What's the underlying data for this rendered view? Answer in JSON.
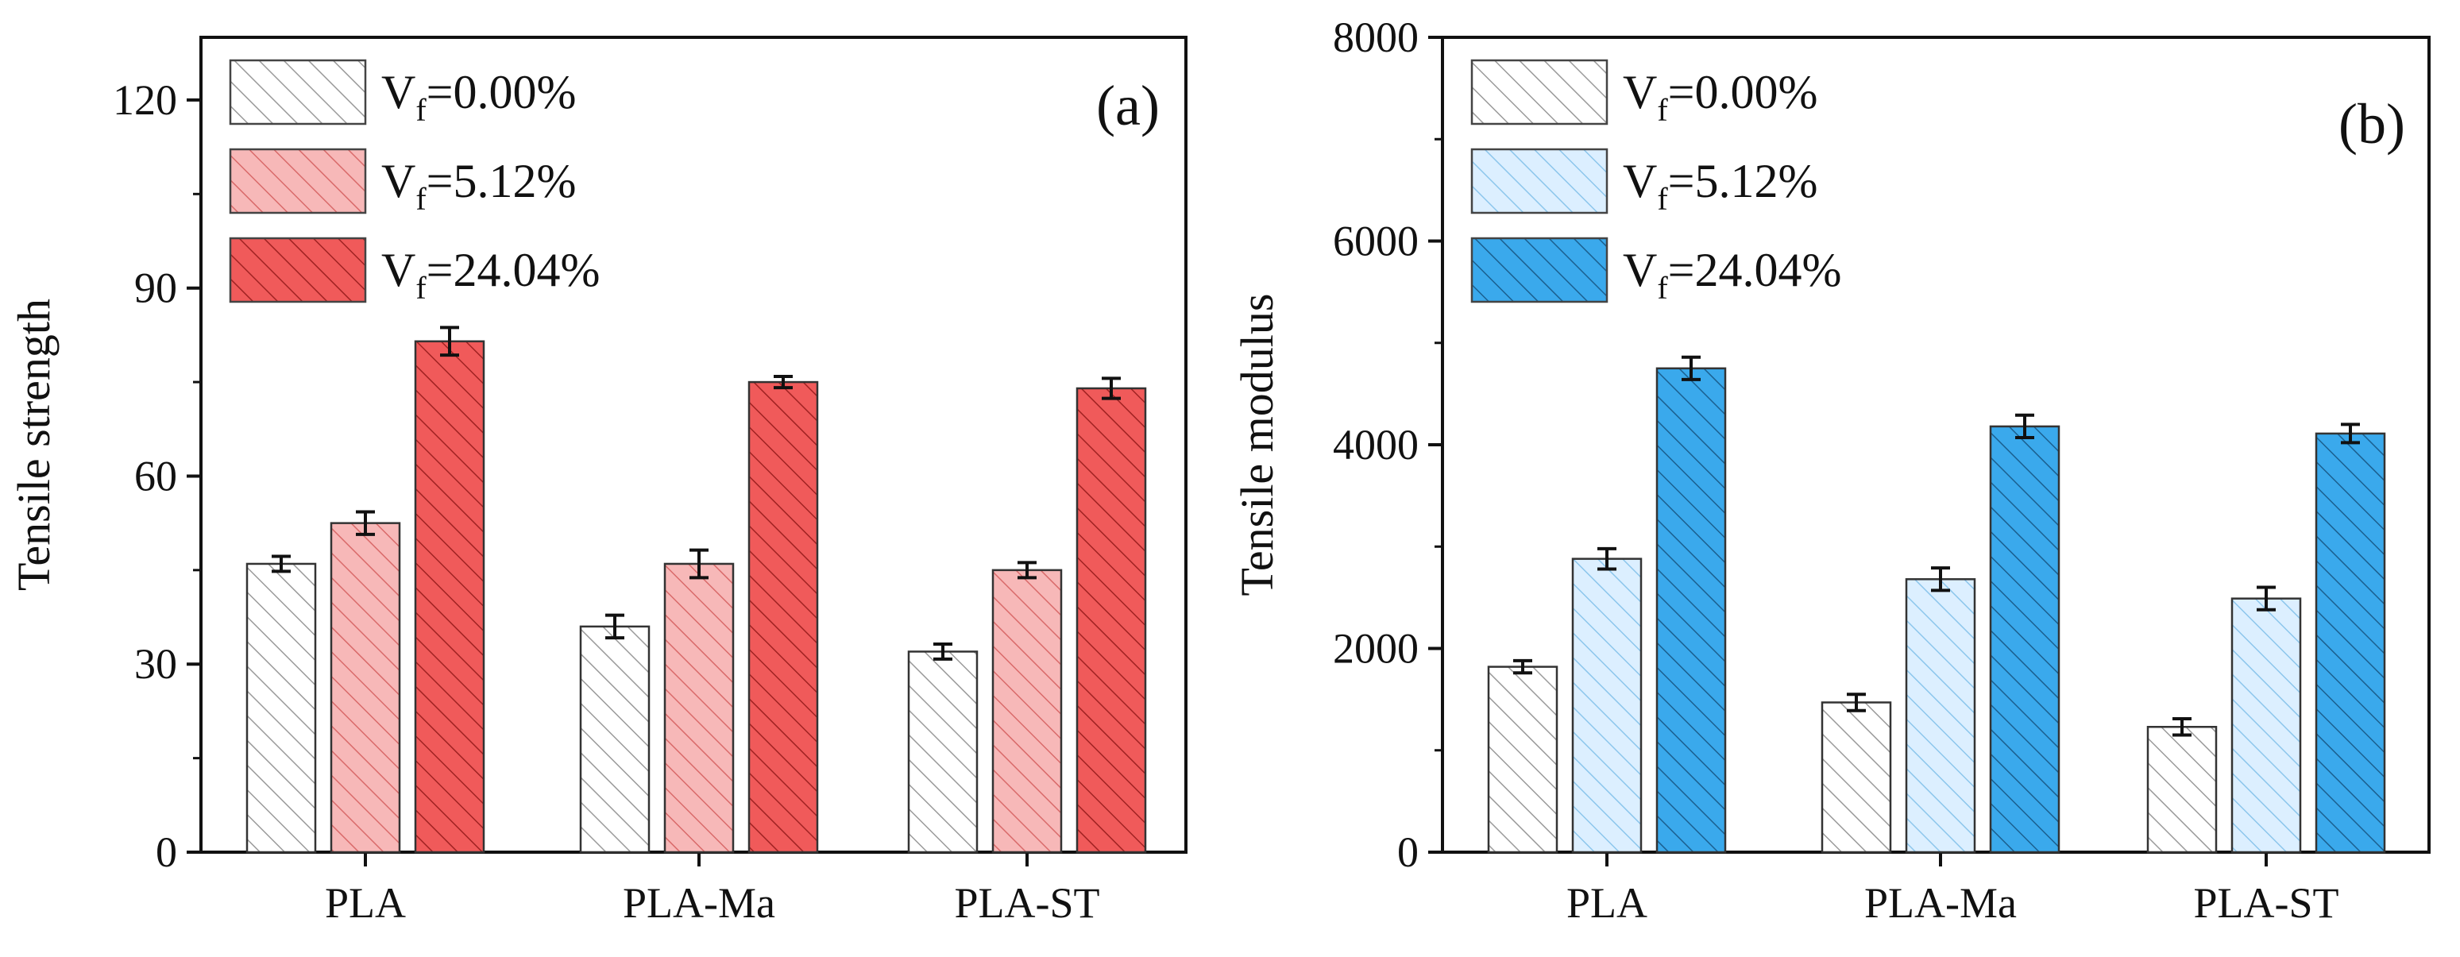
{
  "chart_data": [
    {
      "panel_label": "(a)",
      "type": "bar",
      "title": "",
      "xlabel": "",
      "ylabel": "Tensile strength",
      "ylim": [
        0,
        130
      ],
      "yticks": [
        0,
        30,
        60,
        90,
        120
      ],
      "ytick_labels": [
        "0",
        "30",
        "60",
        "90",
        "120"
      ],
      "categories": [
        "PLA",
        "PLA-Ma",
        "PLA-ST"
      ],
      "legend_position": "top-left",
      "series": [
        {
          "name": "0.00%",
          "legend_prefix": "V",
          "legend_sub": "f",
          "legend_eq": "=",
          "fill": "#ffffff",
          "hatch": "#9a9a9a",
          "values": [
            46,
            36,
            32
          ],
          "errors": [
            1.2,
            1.8,
            1.2
          ]
        },
        {
          "name": "5.12%",
          "legend_prefix": "V",
          "legend_sub": "f",
          "legend_eq": "=",
          "fill": "#f7b8b8",
          "hatch": "#d96a6a",
          "values": [
            52.5,
            46,
            45
          ],
          "errors": [
            1.8,
            2.2,
            1.2
          ]
        },
        {
          "name": "24.04%",
          "legend_prefix": "V",
          "legend_sub": "f",
          "legend_eq": "=",
          "fill": "#f05a5a",
          "hatch": "#a02222",
          "values": [
            81.5,
            75,
            74
          ],
          "errors": [
            2.2,
            0.9,
            1.6
          ]
        }
      ]
    },
    {
      "panel_label": "(b)",
      "type": "bar",
      "title": "",
      "xlabel": "",
      "ylabel": "Tensile modulus",
      "ylim": [
        0,
        8000
      ],
      "yticks": [
        0,
        2000,
        4000,
        6000,
        8000
      ],
      "ytick_labels": [
        "0",
        "2000",
        "4000",
        "6000",
        "8000"
      ],
      "categories": [
        "PLA",
        "PLA-Ma",
        "PLA-ST"
      ],
      "legend_position": "top-left",
      "series": [
        {
          "name": "0.00%",
          "legend_prefix": "V",
          "legend_sub": "f",
          "legend_eq": "=",
          "fill": "#ffffff",
          "hatch": "#9a9a9a",
          "values": [
            1820,
            1470,
            1230
          ],
          "errors": [
            60,
            80,
            80
          ]
        },
        {
          "name": "5.12%",
          "legend_prefix": "V",
          "legend_sub": "f",
          "legend_eq": "=",
          "fill": "#dcefff",
          "hatch": "#8cc6ec",
          "values": [
            2880,
            2680,
            2490
          ],
          "errors": [
            100,
            110,
            110
          ]
        },
        {
          "name": "24.04%",
          "legend_prefix": "V",
          "legend_sub": "f",
          "legend_eq": "=",
          "fill": "#3aa9ec",
          "hatch": "#1b5f8f",
          "values": [
            4750,
            4180,
            4110
          ],
          "errors": [
            110,
            110,
            90
          ]
        }
      ]
    }
  ]
}
